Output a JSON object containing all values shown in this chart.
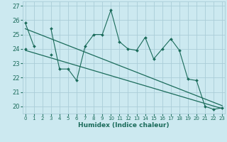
{
  "title": "",
  "xlabel": "Humidex (Indice chaleur)",
  "x": [
    0,
    1,
    2,
    3,
    4,
    5,
    6,
    7,
    8,
    9,
    10,
    11,
    12,
    13,
    14,
    15,
    16,
    17,
    18,
    19,
    20,
    21,
    22,
    23
  ],
  "y_main": [
    25.8,
    24.2,
    null,
    25.4,
    22.6,
    22.6,
    21.8,
    24.2,
    25.0,
    25.0,
    26.7,
    24.5,
    24.0,
    23.9,
    24.8,
    23.3,
    24.0,
    24.7,
    23.9,
    21.9,
    21.8,
    20.0,
    19.8,
    19.9
  ],
  "y_second": [
    24.0,
    null,
    null,
    23.6,
    null,
    null,
    null,
    null,
    null,
    null,
    null,
    null,
    null,
    null,
    null,
    null,
    null,
    null,
    null,
    null,
    null,
    null,
    null,
    null
  ],
  "trend1_x": [
    0,
    23
  ],
  "trend1_y": [
    25.4,
    20.05
  ],
  "trend2_x": [
    0,
    23
  ],
  "trend2_y": [
    23.9,
    19.85
  ],
  "background_color": "#cce9f0",
  "grid_color": "#aacdd8",
  "line_color": "#1a6b5a",
  "ylim": [
    19.5,
    27.3
  ],
  "xlim": [
    -0.3,
    23.3
  ],
  "yticks": [
    20,
    21,
    22,
    23,
    24,
    25,
    26,
    27
  ],
  "xticks": [
    0,
    1,
    2,
    3,
    4,
    5,
    6,
    7,
    8,
    9,
    10,
    11,
    12,
    13,
    14,
    15,
    16,
    17,
    18,
    19,
    20,
    21,
    22,
    23
  ]
}
